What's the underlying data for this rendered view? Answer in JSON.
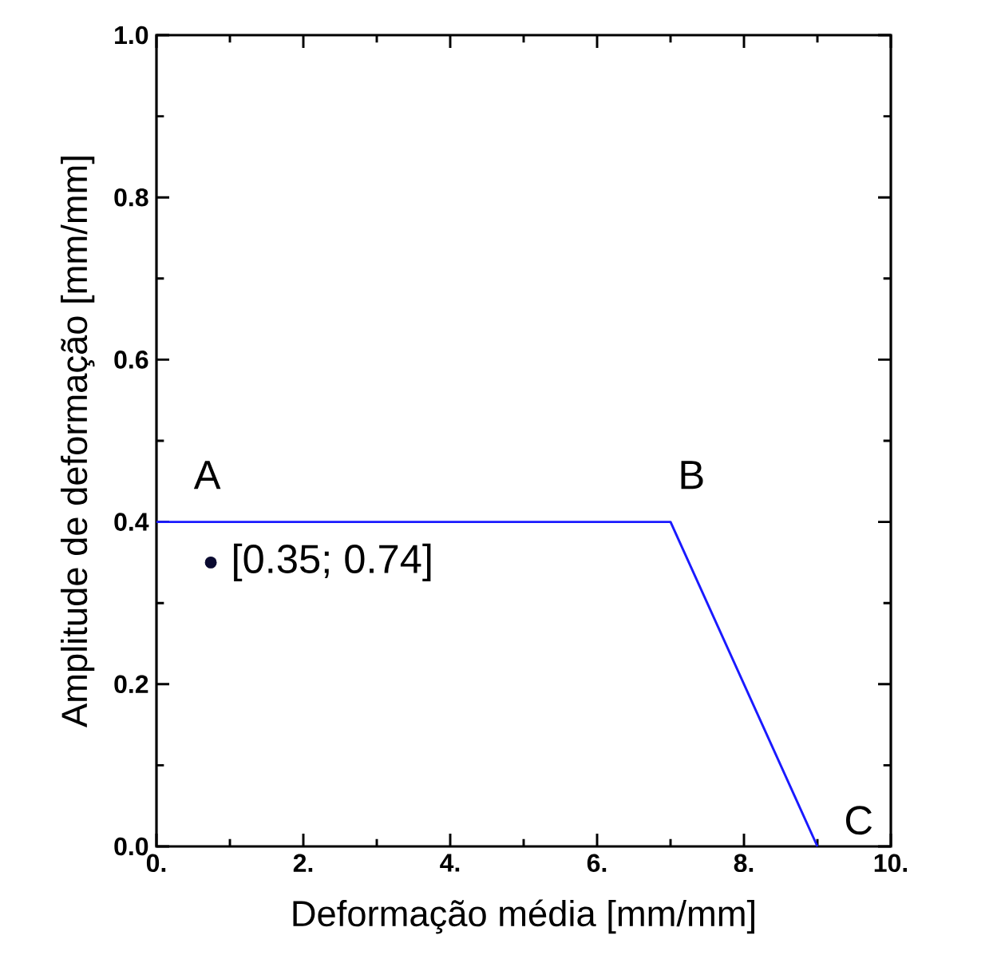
{
  "chart_data": {
    "type": "line",
    "xlabel": "Deformação média [mm/mm]",
    "ylabel": "Amplitude de deformação [mm/mm]",
    "xlim": [
      0,
      10
    ],
    "ylim": [
      0,
      1
    ],
    "xticks": [
      {
        "value": 0,
        "label": "0."
      },
      {
        "value": 2,
        "label": "2."
      },
      {
        "value": 4,
        "label": "4."
      },
      {
        "value": 6,
        "label": "6."
      },
      {
        "value": 8,
        "label": "8."
      },
      {
        "value": 10,
        "label": "10."
      }
    ],
    "yticks": [
      {
        "value": 0,
        "label": "0.0"
      },
      {
        "value": 0.2,
        "label": "0.2"
      },
      {
        "value": 0.4,
        "label": "0.4"
      },
      {
        "value": 0.6,
        "label": "0.6"
      },
      {
        "value": 0.8,
        "label": "0.8"
      },
      {
        "value": 1,
        "label": "1.0"
      }
    ],
    "series": [
      {
        "color": "#1a1aff",
        "x": [
          0,
          7,
          9
        ],
        "values": [
          0.4,
          0.4,
          0
        ],
        "marker": "none",
        "line_style": "solid"
      },
      {
        "type": "scatter",
        "color": "#0a0a30",
        "x": [
          0.74
        ],
        "values": [
          0.35
        ],
        "marker": "circle"
      }
    ],
    "annotations": [
      {
        "text": "A",
        "x": 0,
        "y": 0.4
      },
      {
        "text": "B",
        "x": 7,
        "y": 0.4
      },
      {
        "text": "C",
        "x": 9,
        "y": 0
      },
      {
        "text": "[0.35; 0.74]",
        "x": 0.74,
        "y": 0.35
      }
    ],
    "grid": false
  }
}
